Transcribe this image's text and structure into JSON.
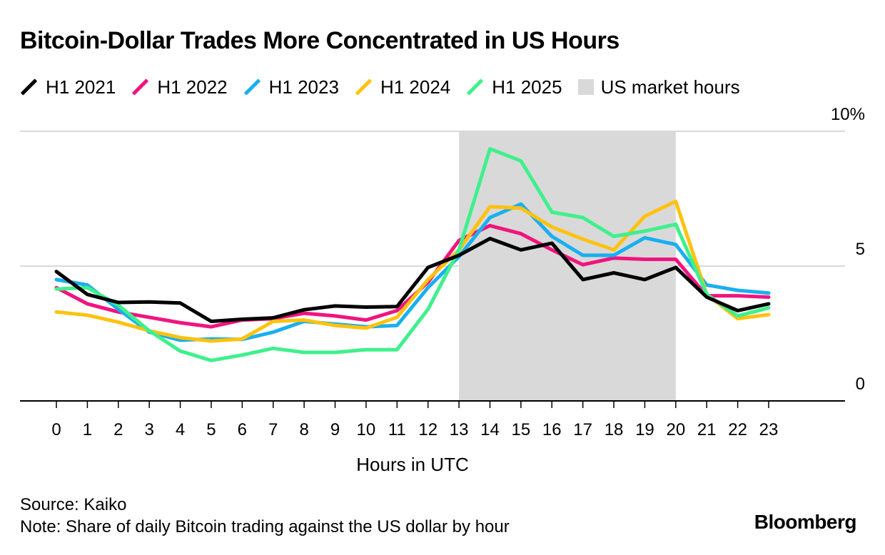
{
  "chart_data": {
    "type": "line",
    "title": "Bitcoin-Dollar Trades More Concentrated in US Hours",
    "xlabel": "Hours in UTC",
    "ylabel": "",
    "x": [
      0,
      1,
      2,
      3,
      4,
      5,
      6,
      7,
      8,
      9,
      10,
      11,
      12,
      13,
      14,
      15,
      16,
      17,
      18,
      19,
      20,
      21,
      22,
      23
    ],
    "ylim": [
      0,
      10
    ],
    "yticks": [
      {
        "value": 0,
        "label": "0"
      },
      {
        "value": 5,
        "label": "5"
      },
      {
        "value": 10,
        "label": "10%"
      }
    ],
    "grid": true,
    "legend_position": "top-left",
    "shaded_region": {
      "label": "US market hours",
      "x_start": 13,
      "x_end": 20,
      "color": "#d9d9d9"
    },
    "series": [
      {
        "name": "H1 2021",
        "color": "#000000",
        "values": [
          4.8,
          3.95,
          3.65,
          3.67,
          3.63,
          2.95,
          3.03,
          3.08,
          3.38,
          3.52,
          3.48,
          3.5,
          4.95,
          5.4,
          6.02,
          5.6,
          5.85,
          4.5,
          4.75,
          4.5,
          4.95,
          3.85,
          3.35,
          3.6
        ]
      },
      {
        "name": "H1 2022",
        "color": "#f0147f",
        "values": [
          4.2,
          3.6,
          3.3,
          3.1,
          2.9,
          2.75,
          3.0,
          3.05,
          3.25,
          3.15,
          3.0,
          3.35,
          4.4,
          5.95,
          6.5,
          6.2,
          5.6,
          5.05,
          5.3,
          5.25,
          5.25,
          3.9,
          3.9,
          3.85
        ]
      },
      {
        "name": "H1 2023",
        "color": "#1aaff0",
        "values": [
          4.5,
          4.3,
          3.4,
          2.55,
          2.25,
          2.3,
          2.28,
          2.55,
          2.95,
          2.85,
          2.75,
          2.8,
          4.2,
          5.35,
          6.8,
          7.3,
          6.1,
          5.4,
          5.4,
          6.05,
          5.8,
          4.3,
          4.1,
          4.0
        ]
      },
      {
        "name": "H1 2024",
        "color": "#ffc20e",
        "values": [
          3.3,
          3.18,
          2.92,
          2.6,
          2.35,
          2.22,
          2.3,
          2.95,
          3.0,
          2.8,
          2.7,
          3.1,
          4.5,
          5.6,
          7.2,
          7.15,
          6.45,
          6.0,
          5.6,
          6.85,
          7.4,
          3.95,
          3.05,
          3.2
        ]
      },
      {
        "name": "H1 2025",
        "color": "#3ff08c",
        "values": [
          4.15,
          4.2,
          3.55,
          2.6,
          1.85,
          1.5,
          1.7,
          1.95,
          1.8,
          1.8,
          1.9,
          1.9,
          3.4,
          5.6,
          9.35,
          8.9,
          7.0,
          6.8,
          6.1,
          6.3,
          6.55,
          3.95,
          3.15,
          3.45
        ]
      }
    ]
  },
  "legend": {
    "items": [
      {
        "label": "H1 2021",
        "color": "#000000"
      },
      {
        "label": "H1 2022",
        "color": "#f0147f"
      },
      {
        "label": "H1 2023",
        "color": "#1aaff0"
      },
      {
        "label": "H1 2024",
        "color": "#ffc20e"
      },
      {
        "label": "H1 2025",
        "color": "#3ff08c"
      }
    ],
    "shade_label": "US market hours"
  },
  "footer": {
    "source": "Source: Kaiko",
    "note": "Note: Share of daily Bitcoin trading against the US dollar by hour"
  },
  "brand": "Bloomberg"
}
